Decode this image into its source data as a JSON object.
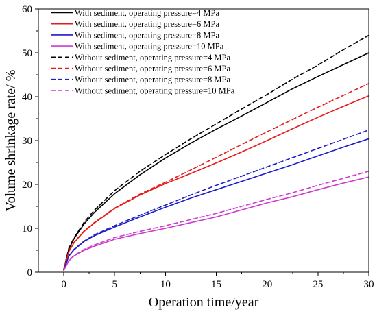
{
  "chart_data": {
    "type": "line",
    "title": "",
    "xlabel": "Operation time/year",
    "ylabel": "Volume shrinkage rate/ %",
    "xlim": [
      -2.5,
      30
    ],
    "ylim": [
      0,
      60
    ],
    "xticks": [
      0,
      5,
      10,
      15,
      20,
      25,
      30
    ],
    "yticks": [
      0,
      10,
      20,
      30,
      40,
      50,
      60
    ],
    "grid": false,
    "legend_position": "top-left",
    "x": [
      0,
      0.5,
      1,
      2,
      3,
      5,
      7.5,
      10,
      12.5,
      15,
      17.5,
      20,
      22.5,
      25,
      27.5,
      30
    ],
    "series": [
      {
        "name": "With sediment, operating pressure=4 MPa",
        "color": "#000000",
        "dash": "solid",
        "values": [
          0.6,
          5.3,
          7.6,
          11.0,
          13.6,
          17.9,
          22.2,
          26.0,
          29.4,
          32.6,
          35.6,
          38.7,
          41.8,
          44.6,
          47.3,
          50.0
        ]
      },
      {
        "name": "With sediment, operating pressure=6 MPa",
        "color": "#e8191b",
        "dash": "solid",
        "values": [
          0.6,
          4.7,
          6.7,
          9.3,
          11.2,
          14.5,
          17.6,
          20.2,
          22.5,
          24.9,
          27.4,
          30.0,
          32.7,
          35.3,
          37.8,
          40.2
        ]
      },
      {
        "name": "With sediment, operating pressure=8 MPa",
        "color": "#1c1cc8",
        "dash": "solid",
        "values": [
          0.5,
          3.7,
          5.1,
          7.0,
          8.3,
          10.3,
          12.6,
          14.8,
          16.9,
          18.8,
          20.7,
          22.6,
          24.5,
          26.5,
          28.5,
          30.4
        ]
      },
      {
        "name": "With sediment, operating pressure=10 MPa",
        "color": "#cc3ccc",
        "dash": "solid",
        "values": [
          0.4,
          2.6,
          3.7,
          5.0,
          5.9,
          7.5,
          8.8,
          10.0,
          11.3,
          12.6,
          14.2,
          15.8,
          17.2,
          18.8,
          20.3,
          21.7
        ]
      },
      {
        "name": "Without sediment, operating pressure=4 MPa",
        "color": "#000000",
        "dash": "dashed",
        "values": [
          0.6,
          5.5,
          7.8,
          11.4,
          14.1,
          18.6,
          23.0,
          26.8,
          30.4,
          33.8,
          37.2,
          40.5,
          44.0,
          47.2,
          50.7,
          54.0
        ]
      },
      {
        "name": "Without sediment, operating pressure=6 MPa",
        "color": "#e8191b",
        "dash": "dashed",
        "values": [
          0.6,
          4.8,
          6.8,
          9.4,
          11.3,
          14.6,
          17.8,
          20.5,
          23.3,
          26.2,
          29.1,
          32.0,
          34.8,
          37.6,
          40.3,
          43.0
        ]
      },
      {
        "name": "Without sediment, operating pressure=8 MPa",
        "color": "#1c1cc8",
        "dash": "dashed",
        "values": [
          0.5,
          3.7,
          5.2,
          7.1,
          8.5,
          10.6,
          13.0,
          15.3,
          17.6,
          19.8,
          21.9,
          24.0,
          26.1,
          28.2,
          30.3,
          32.4
        ]
      },
      {
        "name": "Without sediment, operating pressure=10 MPa",
        "color": "#cc3ccc",
        "dash": "dashed",
        "values": [
          0.4,
          2.7,
          3.8,
          5.2,
          6.2,
          7.9,
          9.3,
          10.6,
          12.0,
          13.4,
          15.0,
          16.6,
          18.1,
          19.8,
          21.4,
          23.0
        ]
      }
    ]
  }
}
